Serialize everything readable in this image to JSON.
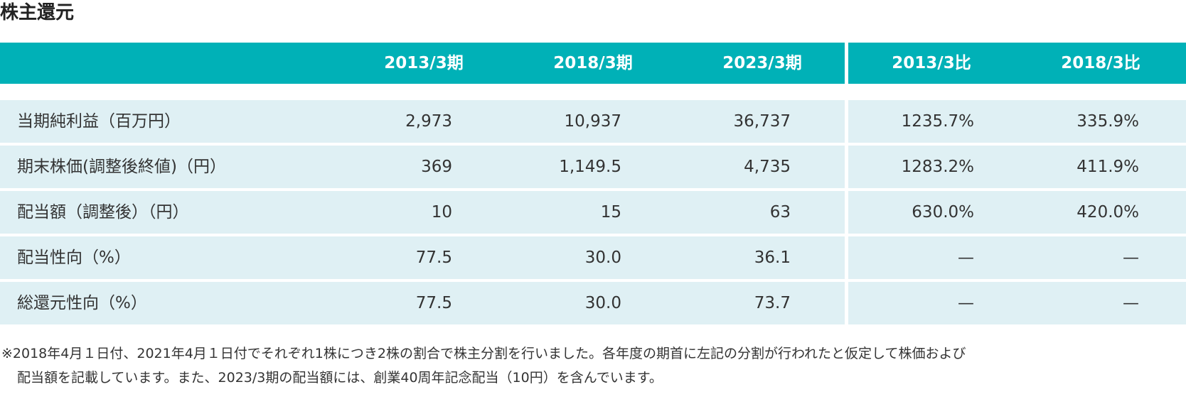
{
  "title": "株主還元",
  "columns": [
    "2013/3期",
    "2018/3期",
    "2023/3期",
    "2013/3比",
    "2018/3比"
  ],
  "rows": [
    {
      "label": "当期純利益（百万円）",
      "values": [
        "2,973",
        "10,937",
        "36,737",
        "1235.7%",
        "335.9%"
      ]
    },
    {
      "label": "期末株価(調整後終値)（円）",
      "values": [
        "369",
        "1,149.5",
        "4,735",
        "1283.2%",
        "411.9%"
      ]
    },
    {
      "label": "配当額（調整後）（円）",
      "values": [
        "10",
        "15",
        "63",
        "630.0%",
        "420.0%"
      ]
    },
    {
      "label": "配当性向（%）",
      "values": [
        "77.5",
        "30.0",
        "36.1",
        "—",
        "—"
      ]
    },
    {
      "label": "総還元性向（%）",
      "values": [
        "77.5",
        "30.0",
        "73.7",
        "—",
        "—"
      ]
    }
  ],
  "note": {
    "line1": "※2018年4月１日付、2021年4月１日付でそれぞれ1株につき2株の割合で株主分割を行いました。各年度の期首に左記の分割が行われたと仮定して株価および",
    "line2": "配当額を記載しています。また、2023/3期の配当額には、創業40周年記念配当（10円）を含んでいます。"
  },
  "colors": {
    "header_bg": "#00b1b7",
    "row_bg": "#dff0f4",
    "header_text": "#ffffff",
    "body_text": "#333333"
  }
}
